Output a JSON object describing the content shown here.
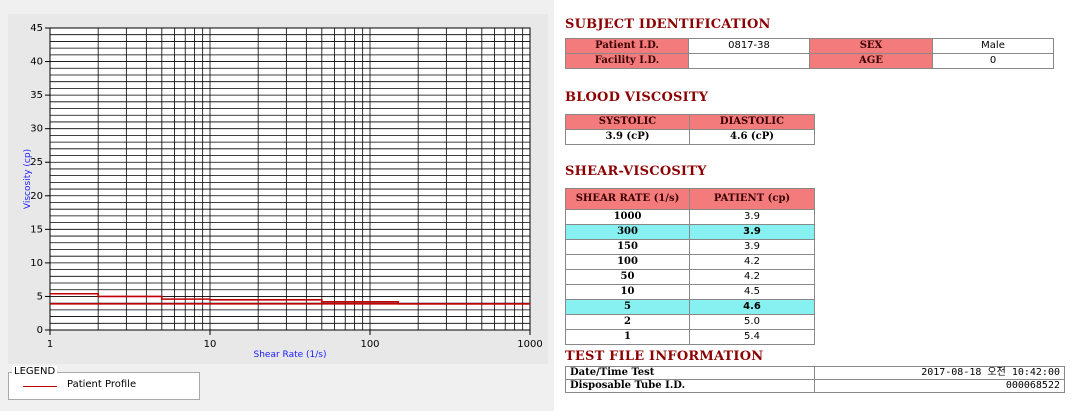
{
  "legend": {
    "title": "LEGEND",
    "entry": "Patient Profile",
    "color": "#c00000"
  },
  "chart_data": {
    "type": "line",
    "xlabel": "Shear Rate (1/s)",
    "ylabel": "Viscosity (cp)",
    "xscale": "log",
    "xlim": [
      1,
      1000
    ],
    "ylim": [
      0,
      45
    ],
    "x_tick_labels": [
      "1",
      "10",
      "100",
      "1000"
    ],
    "y_tick_labels": [
      "0",
      "5",
      "10",
      "15",
      "20",
      "25",
      "30",
      "35",
      "40",
      "45"
    ],
    "grid": true,
    "series": [
      {
        "name": "Patient Profile",
        "color": "#c00000",
        "x": [
          1,
          2,
          5,
          10,
          50,
          100,
          150,
          300,
          1000
        ],
        "y": [
          5.4,
          5.0,
          4.6,
          4.5,
          4.2,
          4.2,
          3.9,
          3.9,
          3.9
        ]
      },
      {
        "name": "",
        "color": "#c00000",
        "x": [
          1,
          1000
        ],
        "y": [
          3.9,
          3.9
        ]
      }
    ]
  },
  "subject": {
    "title": "SUBJECT IDENTIFICATION",
    "patient_id_label": "Patient I.D.",
    "patient_id": "0817-38",
    "sex_label": "SEX",
    "sex": "Male",
    "facility_id_label": "Facility I.D.",
    "facility_id": "",
    "age_label": "AGE",
    "age": "0"
  },
  "blood": {
    "title": "BLOOD VISCOSITY",
    "systolic_label": "SYSTOLIC",
    "diastolic_label": "DIASTOLIC",
    "systolic": "3.9 (cP)",
    "diastolic": "4.6 (cP)"
  },
  "shear": {
    "title": "SHEAR-VISCOSITY",
    "rate_header": "SHEAR RATE (1/s)",
    "patient_header": "PATIENT (cp)",
    "highlight_color": "#87f0f0",
    "rows": [
      {
        "rate": "1000",
        "value": "3.9",
        "highlight": false
      },
      {
        "rate": "300",
        "value": "3.9",
        "highlight": true
      },
      {
        "rate": "150",
        "value": "3.9",
        "highlight": false
      },
      {
        "rate": "100",
        "value": "4.2",
        "highlight": false
      },
      {
        "rate": "50",
        "value": "4.2",
        "highlight": false
      },
      {
        "rate": "10",
        "value": "4.5",
        "highlight": false
      },
      {
        "rate": "5",
        "value": "4.6",
        "highlight": true
      },
      {
        "rate": "2",
        "value": "5.0",
        "highlight": false
      },
      {
        "rate": "1",
        "value": "5.4",
        "highlight": false
      }
    ]
  },
  "testfile": {
    "title": "TEST FILE INFORMATION",
    "datetime_label": "Date/Time Test",
    "datetime": "2017-08-18  오전 10:42:00",
    "tube_label": "Disposable Tube I.D.",
    "tube": "000068522"
  }
}
